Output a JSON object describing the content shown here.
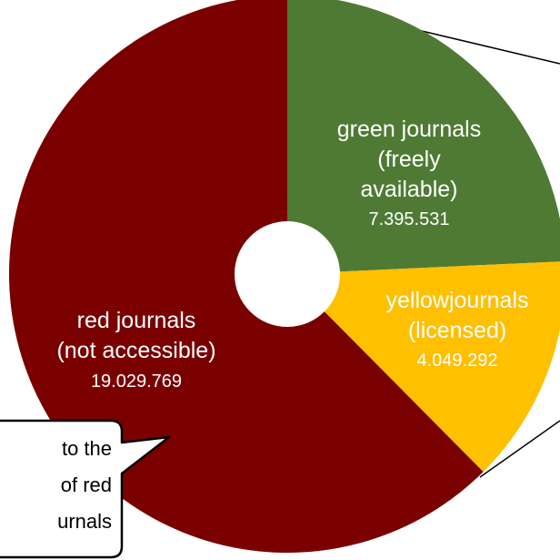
{
  "chart_data": {
    "type": "pie",
    "donut": true,
    "categories": [
      "green journals",
      "yellow journals",
      "red journals"
    ],
    "values": [
      7395531,
      4049292,
      19029769
    ],
    "colors": [
      "#4f7a34",
      "#ffc000",
      "#7a0000"
    ],
    "labels": {
      "green": [
        "green journals",
        "(freely",
        "available)",
        "7.395.531"
      ],
      "yellow": [
        "yellowjournals",
        "(licensed)",
        "4.049.292"
      ],
      "red": [
        "red journals",
        "(not accessible)",
        "19.029.769"
      ]
    }
  },
  "callout": {
    "lines": [
      "to the",
      "of red",
      "urnals"
    ]
  }
}
